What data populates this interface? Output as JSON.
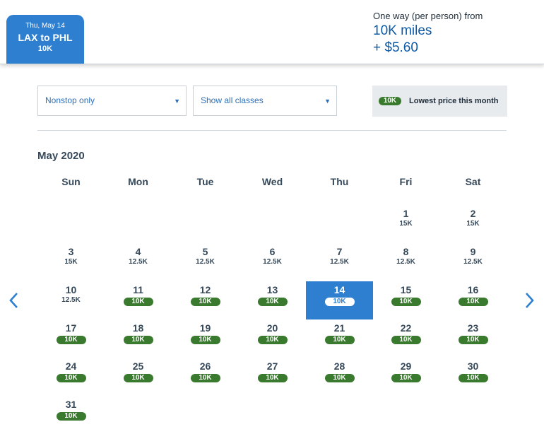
{
  "trip": {
    "date_label": "Thu, May 14",
    "route": "LAX to PHL",
    "price": "10K"
  },
  "fare": {
    "label": "One way (per person) from",
    "miles": "10K miles",
    "cash": "+ $5.60"
  },
  "filters": {
    "stops": "Nonstop only",
    "classes": "Show all classes"
  },
  "legend": {
    "pill": "10K",
    "text": "Lowest price this month"
  },
  "calendar": {
    "month": "May 2020",
    "weekdays": [
      "Sun",
      "Mon",
      "Tue",
      "Wed",
      "Thu",
      "Fri",
      "Sat"
    ],
    "days": [
      {
        "day": "1",
        "price": "15K",
        "low": false
      },
      {
        "day": "2",
        "price": "15K",
        "low": false
      },
      {
        "day": "3",
        "price": "15K",
        "low": false
      },
      {
        "day": "4",
        "price": "12.5K",
        "low": false
      },
      {
        "day": "5",
        "price": "12.5K",
        "low": false
      },
      {
        "day": "6",
        "price": "12.5K",
        "low": false
      },
      {
        "day": "7",
        "price": "12.5K",
        "low": false
      },
      {
        "day": "8",
        "price": "12.5K",
        "low": false
      },
      {
        "day": "9",
        "price": "12.5K",
        "low": false
      },
      {
        "day": "10",
        "price": "12.5K",
        "low": false
      },
      {
        "day": "11",
        "price": "10K",
        "low": true
      },
      {
        "day": "12",
        "price": "10K",
        "low": true
      },
      {
        "day": "13",
        "price": "10K",
        "low": true
      },
      {
        "day": "14",
        "price": "10K",
        "low": true,
        "selected": true
      },
      {
        "day": "15",
        "price": "10K",
        "low": true
      },
      {
        "day": "16",
        "price": "10K",
        "low": true
      },
      {
        "day": "17",
        "price": "10K",
        "low": true
      },
      {
        "day": "18",
        "price": "10K",
        "low": true
      },
      {
        "day": "19",
        "price": "10K",
        "low": true
      },
      {
        "day": "20",
        "price": "10K",
        "low": true
      },
      {
        "day": "21",
        "price": "10K",
        "low": true
      },
      {
        "day": "22",
        "price": "10K",
        "low": true
      },
      {
        "day": "23",
        "price": "10K",
        "low": true
      },
      {
        "day": "24",
        "price": "10K",
        "low": true
      },
      {
        "day": "25",
        "price": "10K",
        "low": true
      },
      {
        "day": "26",
        "price": "10K",
        "low": true
      },
      {
        "day": "27",
        "price": "10K",
        "low": true
      },
      {
        "day": "28",
        "price": "10K",
        "low": true
      },
      {
        "day": "29",
        "price": "10K",
        "low": true
      },
      {
        "day": "30",
        "price": "10K",
        "low": true
      },
      {
        "day": "31",
        "price": "10K",
        "low": true
      }
    ]
  },
  "nav": {
    "prev_icon": "chevron-left-icon",
    "next_icon": "chevron-right-icon"
  }
}
